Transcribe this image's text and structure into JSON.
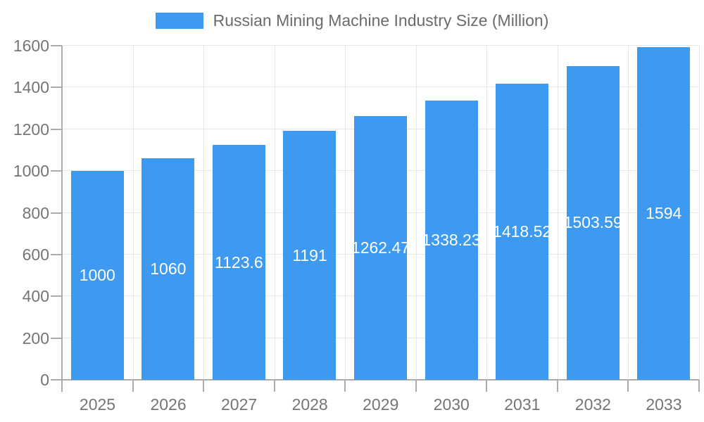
{
  "chart_data": {
    "type": "bar",
    "title": "Russian Mining Machine Industry Size (Million)",
    "categories": [
      "2025",
      "2026",
      "2027",
      "2028",
      "2029",
      "2030",
      "2031",
      "2032",
      "2033"
    ],
    "values": [
      1000,
      1060,
      1123.6,
      1191,
      1262.47,
      1338.23,
      1418.52,
      1503.59,
      1594
    ],
    "value_labels": [
      "1000",
      "1060",
      "1123.6",
      "1191",
      "1262.47",
      "1338.23",
      "1418.52",
      "1503.59",
      "1594"
    ],
    "xlabel": "",
    "ylabel": "",
    "ylim": [
      0,
      1600
    ],
    "yticks": [
      0,
      200,
      400,
      600,
      800,
      1000,
      1200,
      1400,
      1600
    ],
    "ytick_labels": [
      "0",
      "200",
      "400",
      "600",
      "800",
      "1000",
      "1200",
      "1400",
      "1600"
    ],
    "grid": true,
    "legend_position": "top-center",
    "colors": {
      "bar": "#3D9AF0",
      "value_label": "#FFFFFF",
      "grid": "#E6E6E6",
      "axis": "#ACACAC",
      "tick_text": "#757575",
      "legend_text": "#6B6B6B",
      "background": "#FFFFFF"
    }
  }
}
